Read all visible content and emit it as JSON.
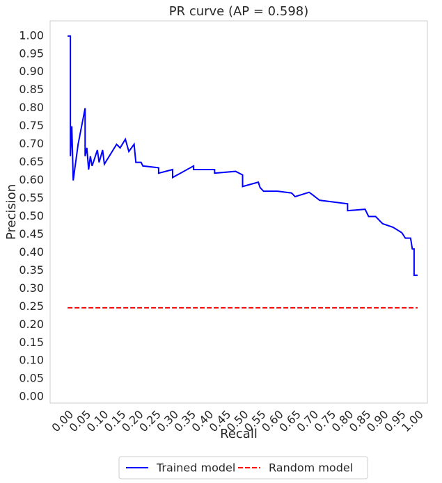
{
  "chart_data": {
    "type": "line",
    "title": "PR curve (AP = 0.598)",
    "xlabel": "Recall",
    "ylabel": "Precision",
    "xlim": [
      -0.05,
      1.028
    ],
    "ylim": [
      -0.017,
      1.042
    ],
    "grid": false,
    "legend": "lower center outside",
    "xticks": [
      {
        "value": 0,
        "label": "0.00"
      },
      {
        "value": 0.05,
        "label": "0.05"
      },
      {
        "value": 0.1,
        "label": "0.10"
      },
      {
        "value": 0.15,
        "label": "0.15"
      },
      {
        "value": 0.2,
        "label": "0.20"
      },
      {
        "value": 0.25,
        "label": "0.25"
      },
      {
        "value": 0.3,
        "label": "0.30"
      },
      {
        "value": 0.35,
        "label": "0.35"
      },
      {
        "value": 0.4,
        "label": "0.40"
      },
      {
        "value": 0.45,
        "label": "0.45"
      },
      {
        "value": 0.5,
        "label": "0.50"
      },
      {
        "value": 0.55,
        "label": "0.55"
      },
      {
        "value": 0.6,
        "label": "0.60"
      },
      {
        "value": 0.65,
        "label": "0.65"
      },
      {
        "value": 0.7,
        "label": "0.70"
      },
      {
        "value": 0.75,
        "label": "0.75"
      },
      {
        "value": 0.8,
        "label": "0.80"
      },
      {
        "value": 0.85,
        "label": "0.85"
      },
      {
        "value": 0.9,
        "label": "0.90"
      },
      {
        "value": 0.95,
        "label": "0.95"
      },
      {
        "value": 1,
        "label": "1.00"
      }
    ],
    "yticks": [
      {
        "value": 0,
        "label": "0.00"
      },
      {
        "value": 0.05,
        "label": "0.05"
      },
      {
        "value": 0.1,
        "label": "0.10"
      },
      {
        "value": 0.15,
        "label": "0.15"
      },
      {
        "value": 0.2,
        "label": "0.20"
      },
      {
        "value": 0.25,
        "label": "0.25"
      },
      {
        "value": 0.3,
        "label": "0.30"
      },
      {
        "value": 0.35,
        "label": "0.35"
      },
      {
        "value": 0.4,
        "label": "0.40"
      },
      {
        "value": 0.45,
        "label": "0.45"
      },
      {
        "value": 0.5,
        "label": "0.50"
      },
      {
        "value": 0.55,
        "label": "0.55"
      },
      {
        "value": 0.6,
        "label": "0.60"
      },
      {
        "value": 0.65,
        "label": "0.65"
      },
      {
        "value": 0.7,
        "label": "0.70"
      },
      {
        "value": 0.75,
        "label": "0.75"
      },
      {
        "value": 0.8,
        "label": "0.80"
      },
      {
        "value": 0.85,
        "label": "0.85"
      },
      {
        "value": 0.9,
        "label": "0.90"
      },
      {
        "value": 0.95,
        "label": "0.95"
      },
      {
        "value": 1,
        "label": "1.00"
      }
    ],
    "series": [
      {
        "name": "Trained model",
        "color": "#0000ff",
        "dash": false,
        "x": [
          0,
          0.008,
          0.008,
          0.012,
          0.016,
          0.03,
          0.05,
          0.05,
          0.055,
          0.06,
          0.065,
          0.07,
          0.085,
          0.09,
          0.1,
          0.105,
          0.14,
          0.15,
          0.165,
          0.175,
          0.19,
          0.195,
          0.21,
          0.215,
          0.26,
          0.26,
          0.3,
          0.3,
          0.36,
          0.36,
          0.42,
          0.42,
          0.48,
          0.5,
          0.5,
          0.5,
          0.545,
          0.55,
          0.56,
          0.6,
          0.64,
          0.65,
          0.69,
          0.7,
          0.72,
          0.8,
          0.8,
          0.85,
          0.86,
          0.88,
          0.9,
          0.93,
          0.955,
          0.965,
          0.98,
          0.985,
          0.99,
          0.99,
          1.0
        ],
        "values": [
          1.0,
          1.0,
          0.667,
          0.75,
          0.6,
          0.7,
          0.8,
          0.667,
          0.69,
          0.63,
          0.667,
          0.64,
          0.684,
          0.65,
          0.684,
          0.645,
          0.7,
          0.69,
          0.714,
          0.68,
          0.7,
          0.65,
          0.65,
          0.64,
          0.635,
          0.62,
          0.63,
          0.608,
          0.64,
          0.63,
          0.63,
          0.62,
          0.625,
          0.615,
          0.6,
          0.583,
          0.595,
          0.58,
          0.57,
          0.57,
          0.565,
          0.555,
          0.567,
          0.56,
          0.545,
          0.535,
          0.516,
          0.52,
          0.5,
          0.5,
          0.48,
          0.47,
          0.455,
          0.44,
          0.44,
          0.41,
          0.41,
          0.337,
          0.337
        ]
      },
      {
        "name": "Random model",
        "color": "#ff0000",
        "dash": true,
        "x": [
          0,
          1
        ],
        "values": [
          0.247,
          0.247
        ]
      }
    ]
  }
}
